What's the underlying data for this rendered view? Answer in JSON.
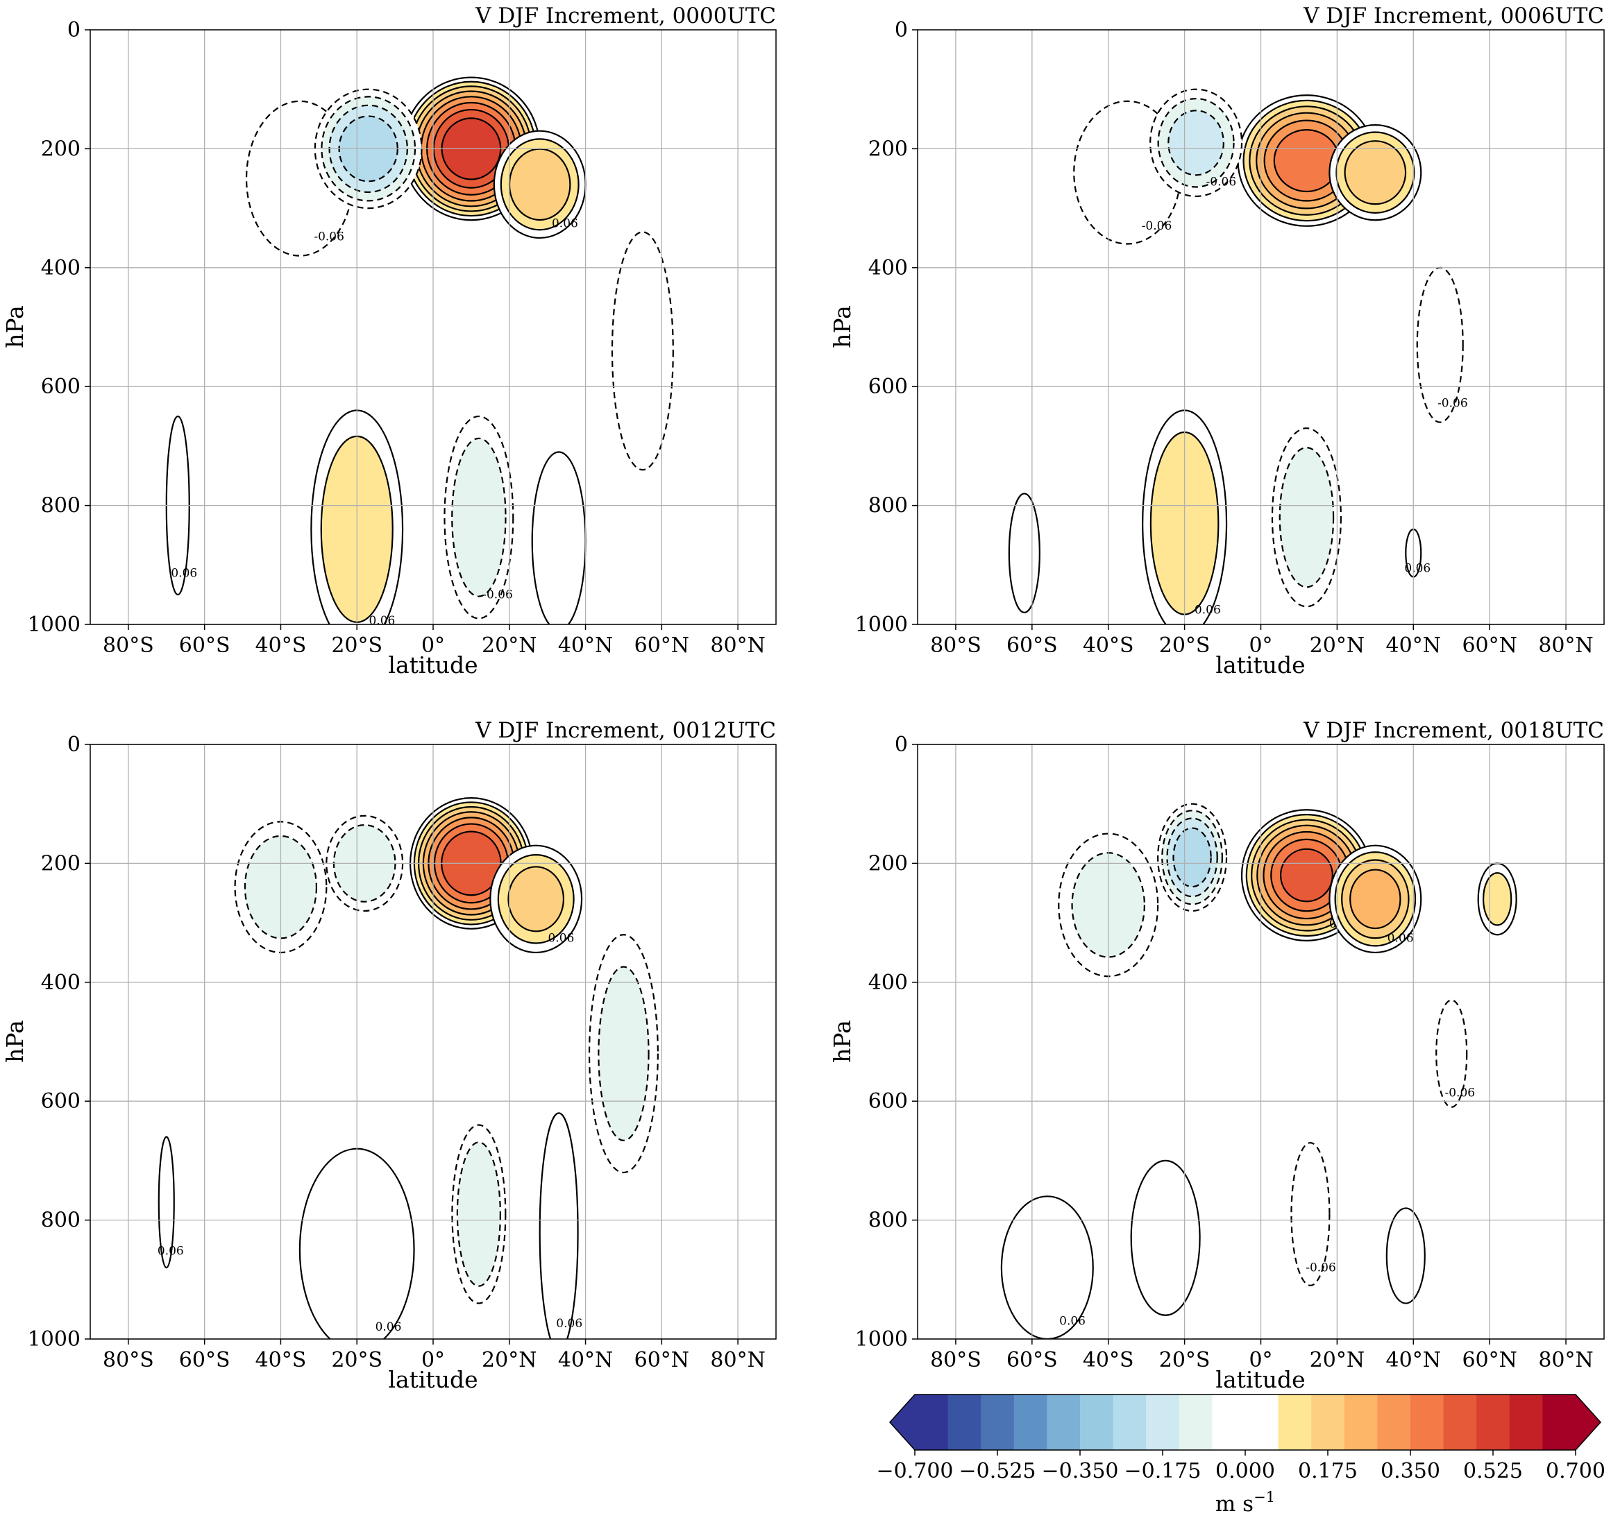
{
  "figure": {
    "contour_label": "0.06",
    "contour_label_neg": "-0.06"
  },
  "chart_data": [
    {
      "type": "heatmap",
      "panel": "top-left",
      "title": "V DJF Increment, 0000UTC",
      "xlabel": "latitude",
      "ylabel": "hPa",
      "xlim": [
        -90,
        90
      ],
      "ylim": [
        1000,
        0
      ],
      "y_inverted": true,
      "xticks": [
        -80,
        -60,
        -40,
        -20,
        0,
        20,
        40,
        60,
        80
      ],
      "xtick_labels": [
        "80°S",
        "60°S",
        "40°S",
        "20°S",
        "0°",
        "20°N",
        "40°N",
        "60°N",
        "80°N"
      ],
      "yticks": [
        0,
        200,
        400,
        600,
        800,
        1000
      ],
      "ytick_labels": [
        "0",
        "200",
        "400",
        "600",
        "800",
        "1000"
      ],
      "grid": true,
      "features": [
        {
          "lat": 10,
          "p": 200,
          "rx": 18,
          "ry": 120,
          "value": 0.6
        },
        {
          "lat": 28,
          "p": 260,
          "rx": 12,
          "ry": 90,
          "value": 0.25
        },
        {
          "lat": -17,
          "p": 200,
          "rx": 14,
          "ry": 100,
          "value": -0.3
        },
        {
          "lat": -35,
          "p": 250,
          "rx": 14,
          "ry": 130,
          "value": -0.1
        },
        {
          "lat": 55,
          "p": 540,
          "rx": 8,
          "ry": 200,
          "value": -0.08
        },
        {
          "lat": -20,
          "p": 840,
          "rx": 12,
          "ry": 200,
          "value": 0.18
        },
        {
          "lat": 12,
          "p": 820,
          "rx": 9,
          "ry": 170,
          "value": -0.18
        },
        {
          "lat": 33,
          "p": 860,
          "rx": 7,
          "ry": 150,
          "value": 0.1
        },
        {
          "lat": -67,
          "p": 800,
          "rx": 3,
          "ry": 150,
          "value": 0.08
        }
      ]
    },
    {
      "type": "heatmap",
      "panel": "top-right",
      "title": "V DJF Increment, 0006UTC",
      "xlabel": "latitude",
      "ylabel": "hPa",
      "xlim": [
        -90,
        90
      ],
      "ylim": [
        1000,
        0
      ],
      "y_inverted": true,
      "xticks": [
        -80,
        -60,
        -40,
        -20,
        0,
        20,
        40,
        60,
        80
      ],
      "xtick_labels": [
        "80°S",
        "60°S",
        "40°S",
        "20°S",
        "0°",
        "20°N",
        "40°N",
        "60°N",
        "80°N"
      ],
      "yticks": [
        0,
        200,
        400,
        600,
        800,
        1000
      ],
      "ytick_labels": [
        "0",
        "200",
        "400",
        "600",
        "800",
        "1000"
      ],
      "grid": true,
      "features": [
        {
          "lat": 12,
          "p": 220,
          "rx": 18,
          "ry": 110,
          "value": 0.45
        },
        {
          "lat": 30,
          "p": 240,
          "rx": 12,
          "ry": 80,
          "value": 0.25
        },
        {
          "lat": -17,
          "p": 190,
          "rx": 12,
          "ry": 90,
          "value": -0.22
        },
        {
          "lat": -35,
          "p": 240,
          "rx": 14,
          "ry": 120,
          "value": -0.08
        },
        {
          "lat": 47,
          "p": 530,
          "rx": 6,
          "ry": 130,
          "value": -0.08
        },
        {
          "lat": -20,
          "p": 830,
          "rx": 11,
          "ry": 190,
          "value": 0.2
        },
        {
          "lat": 12,
          "p": 820,
          "rx": 9,
          "ry": 150,
          "value": -0.18
        },
        {
          "lat": -62,
          "p": 880,
          "rx": 4,
          "ry": 100,
          "value": 0.08
        },
        {
          "lat": 40,
          "p": 880,
          "rx": 2,
          "ry": 40,
          "value": 0.08
        }
      ]
    },
    {
      "type": "heatmap",
      "panel": "bottom-left",
      "title": "V DJF Increment, 0012UTC",
      "xlabel": "latitude",
      "ylabel": "hPa",
      "xlim": [
        -90,
        90
      ],
      "ylim": [
        1000,
        0
      ],
      "y_inverted": true,
      "xticks": [
        -80,
        -60,
        -40,
        -20,
        0,
        20,
        40,
        60,
        80
      ],
      "xtick_labels": [
        "80°S",
        "60°S",
        "40°S",
        "20°S",
        "0°",
        "20°N",
        "40°N",
        "60°N",
        "80°N"
      ],
      "yticks": [
        0,
        200,
        400,
        600,
        800,
        1000
      ],
      "ytick_labels": [
        "0",
        "200",
        "400",
        "600",
        "800",
        "1000"
      ],
      "grid": true,
      "features": [
        {
          "lat": 10,
          "p": 200,
          "rx": 16,
          "ry": 110,
          "value": 0.55
        },
        {
          "lat": 27,
          "p": 260,
          "rx": 12,
          "ry": 90,
          "value": 0.22
        },
        {
          "lat": -18,
          "p": 200,
          "rx": 10,
          "ry": 80,
          "value": -0.2
        },
        {
          "lat": -40,
          "p": 240,
          "rx": 12,
          "ry": 110,
          "value": -0.18
        },
        {
          "lat": 50,
          "p": 520,
          "rx": 9,
          "ry": 200,
          "value": -0.15
        },
        {
          "lat": -20,
          "p": 850,
          "rx": 15,
          "ry": 170,
          "value": 0.1
        },
        {
          "lat": 12,
          "p": 790,
          "rx": 7,
          "ry": 150,
          "value": -0.2
        },
        {
          "lat": 33,
          "p": 820,
          "rx": 5,
          "ry": 200,
          "value": 0.08
        },
        {
          "lat": -70,
          "p": 770,
          "rx": 2,
          "ry": 110,
          "value": 0.08
        }
      ]
    },
    {
      "type": "heatmap",
      "panel": "bottom-right",
      "title": "V DJF Increment, 0018UTC",
      "xlabel": "latitude",
      "ylabel": "hPa",
      "xlim": [
        -90,
        90
      ],
      "ylim": [
        1000,
        0
      ],
      "y_inverted": true,
      "xticks": [
        -80,
        -60,
        -40,
        -20,
        0,
        20,
        40,
        60,
        80
      ],
      "xtick_labels": [
        "80°S",
        "60°S",
        "40°S",
        "20°S",
        "0°",
        "20°N",
        "40°N",
        "60°N",
        "80°N"
      ],
      "yticks": [
        0,
        200,
        400,
        600,
        800,
        1000
      ],
      "ytick_labels": [
        "0",
        "200",
        "400",
        "600",
        "800",
        "1000"
      ],
      "grid": true,
      "features": [
        {
          "lat": 12,
          "p": 220,
          "rx": 17,
          "ry": 110,
          "value": 0.5
        },
        {
          "lat": 30,
          "p": 260,
          "rx": 12,
          "ry": 90,
          "value": 0.3
        },
        {
          "lat": -18,
          "p": 190,
          "rx": 9,
          "ry": 90,
          "value": -0.3
        },
        {
          "lat": -40,
          "p": 270,
          "rx": 13,
          "ry": 120,
          "value": -0.15
        },
        {
          "lat": 50,
          "p": 520,
          "rx": 4,
          "ry": 90,
          "value": -0.08
        },
        {
          "lat": 62,
          "p": 260,
          "rx": 5,
          "ry": 60,
          "value": 0.15
        },
        {
          "lat": -25,
          "p": 830,
          "rx": 9,
          "ry": 130,
          "value": 0.08
        },
        {
          "lat": -56,
          "p": 880,
          "rx": 12,
          "ry": 120,
          "value": 0.08
        },
        {
          "lat": 13,
          "p": 790,
          "rx": 5,
          "ry": 120,
          "value": -0.1
        },
        {
          "lat": 38,
          "p": 860,
          "rx": 5,
          "ry": 80,
          "value": 0.08
        }
      ]
    }
  ],
  "colorbar": {
    "vmin": -0.7,
    "vmax": 0.7,
    "extend": "both",
    "unit_label": "m s",
    "unit_exponent": "−1",
    "tick_labels": [
      "−0.700",
      "−0.525",
      "−0.350",
      "−0.175",
      "0.000",
      "0.175",
      "0.350",
      "0.525",
      "0.700"
    ],
    "tick_values": [
      -0.7,
      -0.525,
      -0.35,
      -0.175,
      0,
      0.175,
      0.35,
      0.525,
      0.7
    ],
    "colors": [
      "#313695",
      "#3a54a4",
      "#4a74b4",
      "#5e92c6",
      "#7cb0d5",
      "#98cae1",
      "#b4dbeb",
      "#cfe9f2",
      "#e5f4ee",
      "#ffffff",
      "#ffffff",
      "#fee695",
      "#fdd081",
      "#fdb568",
      "#f99856",
      "#f47a47",
      "#e65a38",
      "#d83f2e",
      "#c42127",
      "#a50026"
    ],
    "under_color": "#313695",
    "over_color": "#a50026"
  }
}
